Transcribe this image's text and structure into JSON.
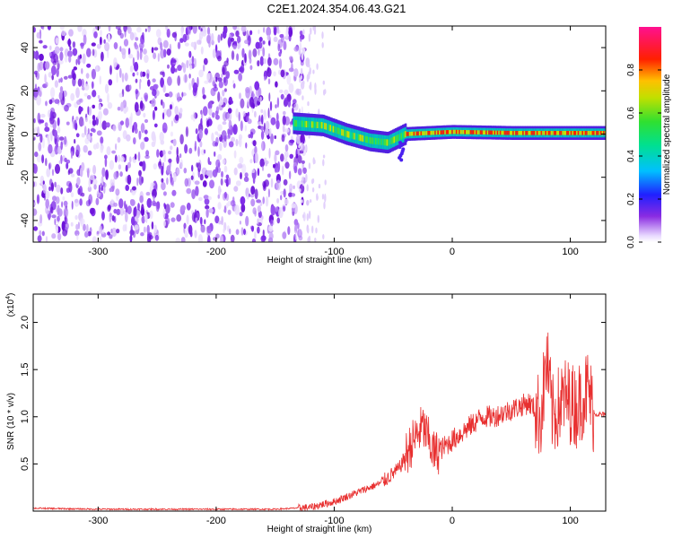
{
  "title": "C2E1.2024.354.06.43.G21",
  "chart_data": [
    {
      "type": "heatmap",
      "xlabel": "Height of straight line (km)",
      "ylabel": "Frequency (Hz)",
      "xlim": [
        -355,
        130
      ],
      "ylim": [
        -50,
        50
      ],
      "x_ticks": [
        -300,
        -200,
        -100,
        0,
        100
      ],
      "y_ticks": [
        -40,
        -20,
        0,
        20,
        40
      ],
      "colorbar": {
        "label": "Normalized spectral amplitude",
        "range": [
          0,
          1
        ],
        "ticks": [
          "0.0",
          "0.2",
          "0.4",
          "0.6",
          "0.8"
        ]
      },
      "signal_track": [
        {
          "x": -135,
          "y": 5
        },
        {
          "x": -110,
          "y": 4
        },
        {
          "x": -90,
          "y": 0
        },
        {
          "x": -70,
          "y": -3
        },
        {
          "x": -55,
          "y": -4
        },
        {
          "x": -40,
          "y": 0
        },
        {
          "x": 0,
          "y": 1
        },
        {
          "x": 50,
          "y": 0.5
        },
        {
          "x": 100,
          "y": 0.5
        },
        {
          "x": 130,
          "y": 0.5
        }
      ],
      "noise_region_x": [
        -355,
        -130
      ]
    },
    {
      "type": "line",
      "xlabel": "Height of straight line (km)",
      "ylabel": "SNR (10 * v/v)",
      "y_multiplier": "(x10",
      "y_multiplier_exp": "4",
      "y_multiplier_close": ")",
      "xlim": [
        -355,
        130
      ],
      "ylim": [
        0,
        2.3
      ],
      "x_ticks": [
        -300,
        -200,
        -100,
        0,
        100
      ],
      "y_ticks": [
        "0.5",
        "1.0",
        "1.5",
        "2.0"
      ],
      "series": [
        {
          "color": "#e83030",
          "points": [
            [
              -355,
              0.03
            ],
            [
              -300,
              0.02
            ],
            [
              -200,
              0.02
            ],
            [
              -150,
              0.02
            ],
            [
              -120,
              0.04
            ],
            [
              -100,
              0.1
            ],
            [
              -80,
              0.2
            ],
            [
              -60,
              0.3
            ],
            [
              -45,
              0.45
            ],
            [
              -35,
              0.7
            ],
            [
              -25,
              0.9
            ],
            [
              -15,
              0.6
            ],
            [
              -5,
              0.7
            ],
            [
              5,
              0.8
            ],
            [
              15,
              0.9
            ],
            [
              25,
              1.0
            ],
            [
              35,
              1.0
            ],
            [
              45,
              1.05
            ],
            [
              55,
              1.1
            ],
            [
              65,
              1.15
            ],
            [
              75,
              1.0
            ],
            [
              80,
              1.6
            ],
            [
              85,
              1.0
            ],
            [
              95,
              1.2
            ],
            [
              105,
              1.1
            ],
            [
              115,
              1.3
            ],
            [
              120,
              1.03
            ],
            [
              130,
              1.02
            ]
          ]
        }
      ]
    }
  ]
}
